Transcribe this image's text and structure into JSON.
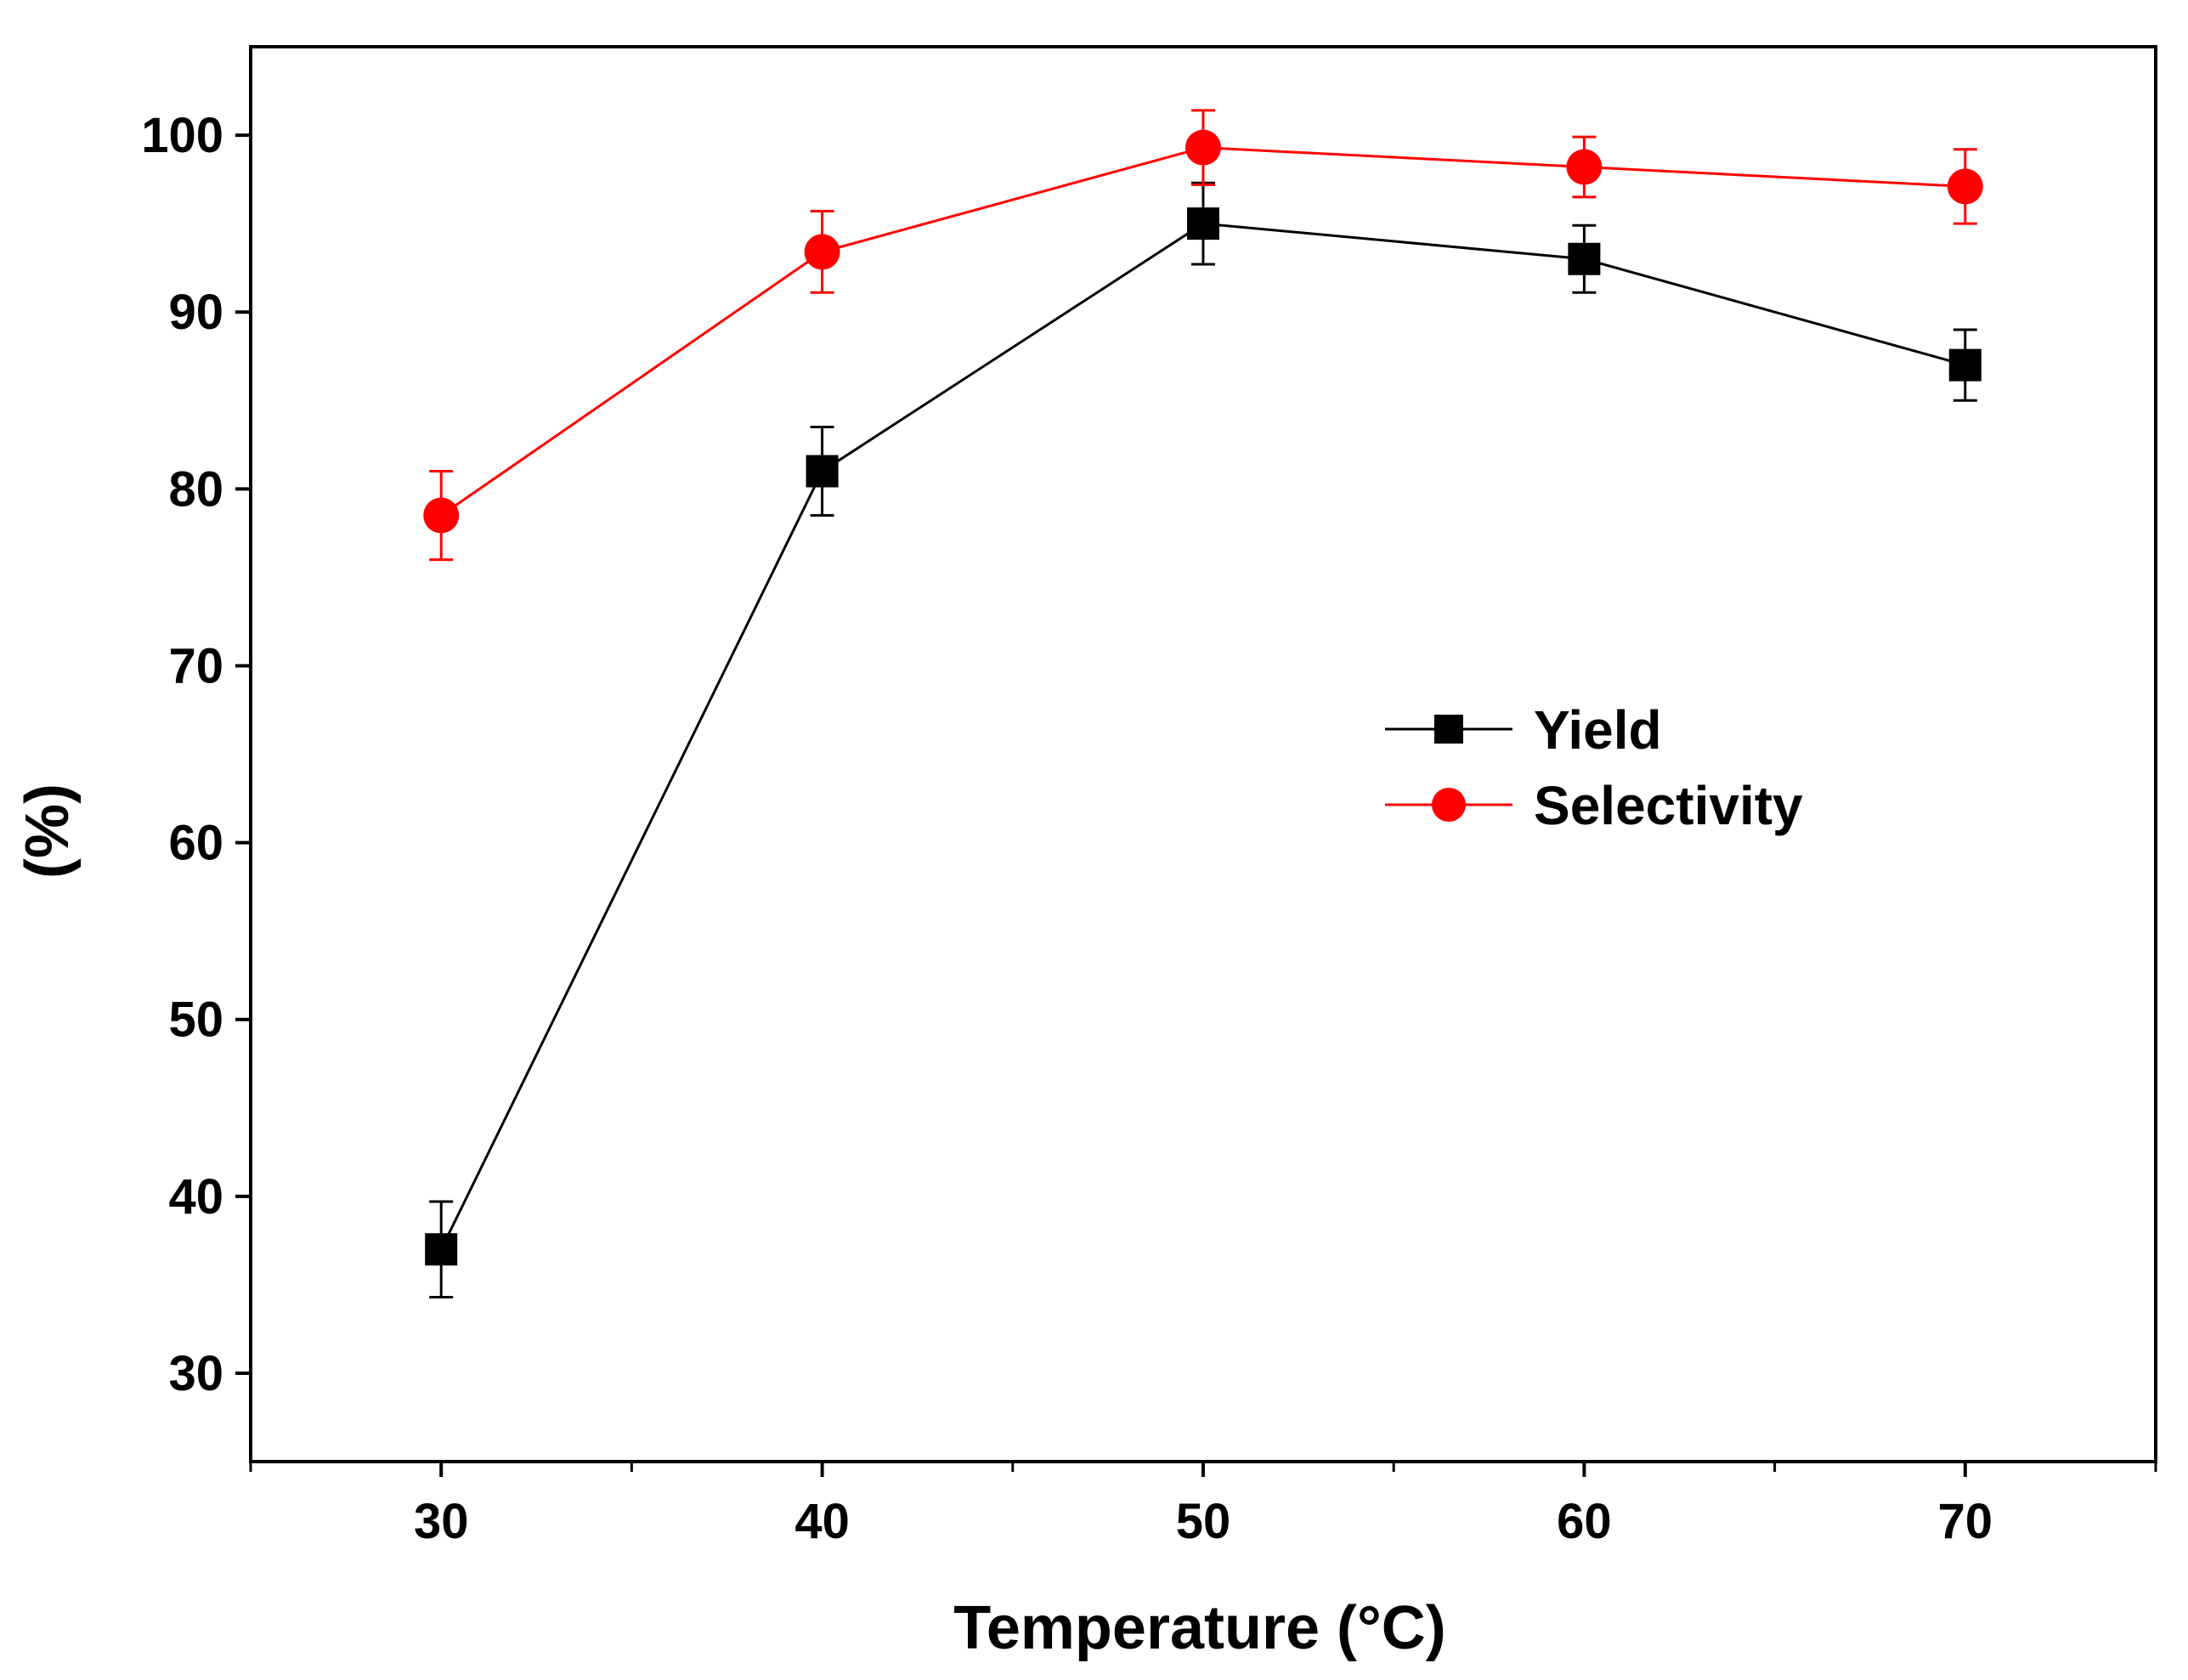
{
  "chart_data": {
    "type": "line",
    "title": "",
    "xlabel": "Temperature (°C)",
    "ylabel": "(%)",
    "xlim": [
      25,
      75
    ],
    "ylim": [
      25,
      105
    ],
    "xticks": [
      30,
      40,
      50,
      60,
      70
    ],
    "yticks": [
      30,
      40,
      50,
      60,
      70,
      80,
      90,
      100
    ],
    "x": [
      30,
      40,
      50,
      60,
      70
    ],
    "grid": false,
    "legend_position": "center-right",
    "series": [
      {
        "name": "Yield",
        "color": "#000000",
        "marker": "square",
        "values": [
          37,
          81,
          95,
          93,
          87
        ],
        "errors": [
          2.7,
          2.5,
          2.3,
          1.9,
          2.0
        ]
      },
      {
        "name": "Selectivity",
        "color": "#ff0000",
        "marker": "circle",
        "values": [
          78.5,
          93.4,
          99.3,
          98.2,
          97.1
        ],
        "errors": [
          2.5,
          2.3,
          2.1,
          1.7,
          2.1
        ]
      }
    ]
  }
}
